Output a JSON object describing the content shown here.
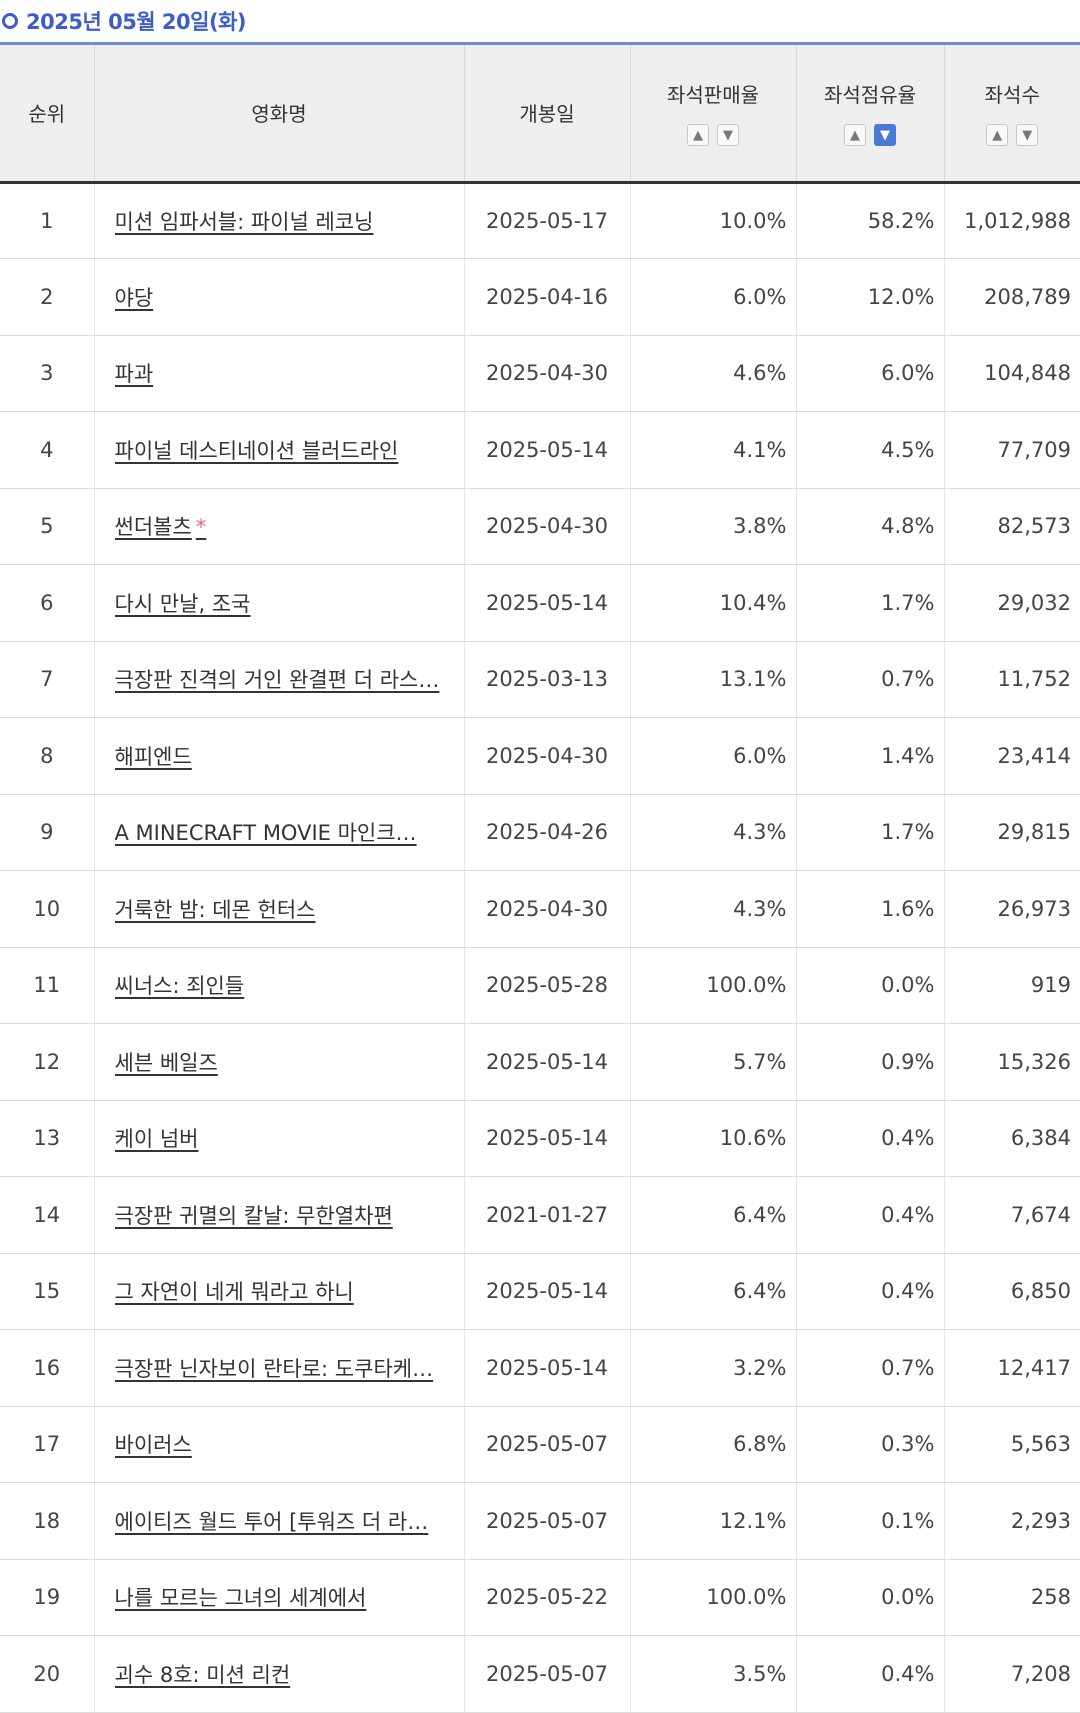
{
  "header": {
    "date": "2025년 05월 20일(화)"
  },
  "columns": {
    "rank": "순위",
    "title": "영화명",
    "release": "개봉일",
    "sales_rate": "좌석판매율",
    "share_rate": "좌석점유율",
    "seats": "좌석수"
  },
  "sort_icons": {
    "up": "▲",
    "down": "▼"
  },
  "rows": [
    {
      "rank": "1",
      "title": "미션 임파서블: 파이널 레코닝",
      "release": "2025-05-17",
      "sales": "10.0%",
      "share": "58.2%",
      "seats": "1,012,988"
    },
    {
      "rank": "2",
      "title": "야당",
      "release": "2025-04-16",
      "sales": "6.0%",
      "share": "12.0%",
      "seats": "208,789"
    },
    {
      "rank": "3",
      "title": "파과",
      "release": "2025-04-30",
      "sales": "4.6%",
      "share": "6.0%",
      "seats": "104,848"
    },
    {
      "rank": "4",
      "title": "파이널 데스티네이션 블러드라인",
      "release": "2025-05-14",
      "sales": "4.1%",
      "share": "4.5%",
      "seats": "77,709"
    },
    {
      "rank": "5",
      "title": "썬더볼츠",
      "release": "2025-04-30",
      "sales": "3.8%",
      "share": "4.8%",
      "seats": "82,573",
      "mark": "*"
    },
    {
      "rank": "6",
      "title": "다시 만날, 조국",
      "release": "2025-05-14",
      "sales": "10.4%",
      "share": "1.7%",
      "seats": "29,032"
    },
    {
      "rank": "7",
      "title": "극장판 진격의 거인 완결편 더 라스…",
      "release": "2025-03-13",
      "sales": "13.1%",
      "share": "0.7%",
      "seats": "11,752"
    },
    {
      "rank": "8",
      "title": "해피엔드",
      "release": "2025-04-30",
      "sales": "6.0%",
      "share": "1.4%",
      "seats": "23,414"
    },
    {
      "rank": "9",
      "title": "A MINECRAFT MOVIE 마인크…",
      "release": "2025-04-26",
      "sales": "4.3%",
      "share": "1.7%",
      "seats": "29,815"
    },
    {
      "rank": "10",
      "title": "거룩한 밤: 데몬 헌터스",
      "release": "2025-04-30",
      "sales": "4.3%",
      "share": "1.6%",
      "seats": "26,973"
    },
    {
      "rank": "11",
      "title": "씨너스: 죄인들",
      "release": "2025-05-28",
      "sales": "100.0%",
      "share": "0.0%",
      "seats": "919"
    },
    {
      "rank": "12",
      "title": "세븐 베일즈",
      "release": "2025-05-14",
      "sales": "5.7%",
      "share": "0.9%",
      "seats": "15,326"
    },
    {
      "rank": "13",
      "title": "케이 넘버",
      "release": "2025-05-14",
      "sales": "10.6%",
      "share": "0.4%",
      "seats": "6,384"
    },
    {
      "rank": "14",
      "title": "극장판 귀멸의 칼날: 무한열차편",
      "release": "2021-01-27",
      "sales": "6.4%",
      "share": "0.4%",
      "seats": "7,674"
    },
    {
      "rank": "15",
      "title": "그 자연이 네게 뭐라고 하니",
      "release": "2025-05-14",
      "sales": "6.4%",
      "share": "0.4%",
      "seats": "6,850"
    },
    {
      "rank": "16",
      "title": "극장판 닌자보이 란타로: 도쿠타케…",
      "release": "2025-05-14",
      "sales": "3.2%",
      "share": "0.7%",
      "seats": "12,417"
    },
    {
      "rank": "17",
      "title": "바이러스",
      "release": "2025-05-07",
      "sales": "6.8%",
      "share": "0.3%",
      "seats": "5,563"
    },
    {
      "rank": "18",
      "title": "에이티즈 월드 투어 [투워즈 더 라…",
      "release": "2025-05-07",
      "sales": "12.1%",
      "share": "0.1%",
      "seats": "2,293"
    },
    {
      "rank": "19",
      "title": "나를 모르는 그녀의 세계에서",
      "release": "2025-05-22",
      "sales": "100.0%",
      "share": "0.0%",
      "seats": "258"
    },
    {
      "rank": "20",
      "title": "괴수 8호: 미션 리컨",
      "release": "2025-05-07",
      "sales": "3.5%",
      "share": "0.4%",
      "seats": "7,208"
    }
  ]
}
